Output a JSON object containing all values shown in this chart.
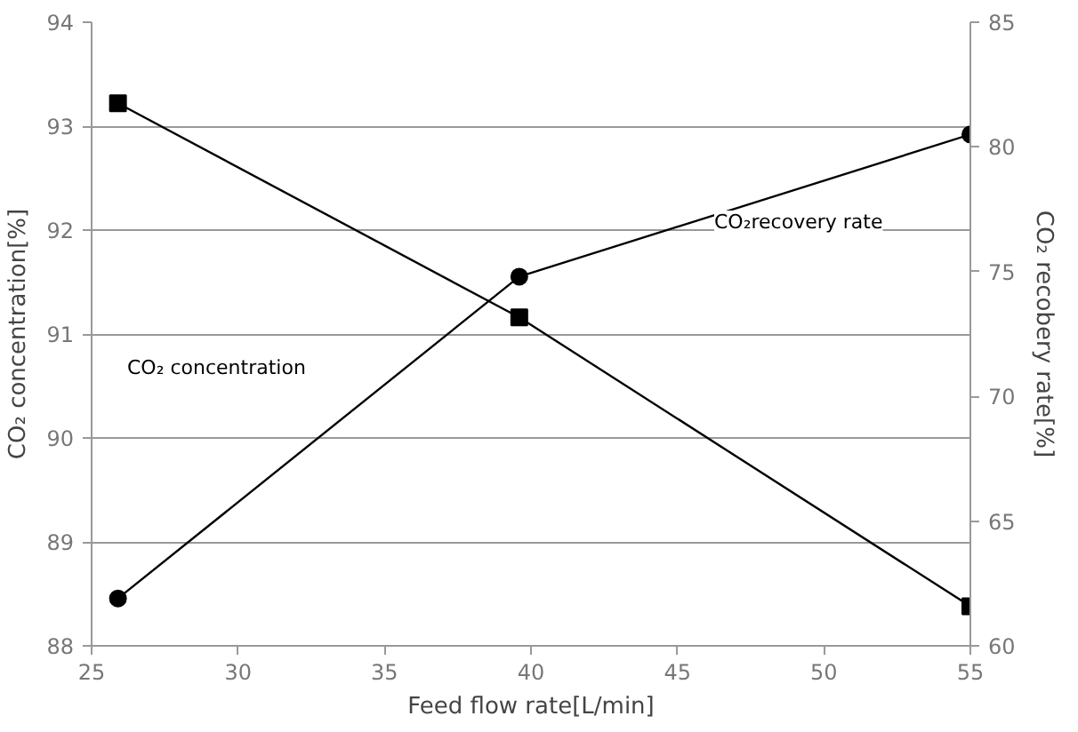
{
  "chart_data": {
    "type": "line",
    "xlabel": "Feed flow rate[L/min]",
    "ylabel": "CO₂ concentration[%]",
    "y2label": "CO₂ recobery rate[%]",
    "x": [
      25.9,
      39.6,
      55
    ],
    "series": [
      {
        "color": "#000000",
        "values": [
          93.22,
          91.16,
          88.38
        ],
        "marker": "square"
      },
      {
        "color": "#000000",
        "values": [
          61.9,
          74.8,
          80.5
        ],
        "marker": "circle",
        "axis": "y2"
      }
    ],
    "xlim": [
      25,
      55
    ],
    "xticks": [
      25,
      30,
      35,
      40,
      45,
      50,
      55
    ],
    "ylim": [
      88,
      94
    ],
    "yticks": [
      88,
      89,
      90,
      91,
      92,
      93,
      94
    ],
    "y2lim": [
      60,
      85
    ],
    "y2ticks": [
      60,
      65,
      70,
      75,
      80,
      85
    ],
    "grid": "y",
    "line_style": "solid",
    "annotations": [
      "CO₂ concentration",
      "CO₂recovery rate"
    ]
  }
}
